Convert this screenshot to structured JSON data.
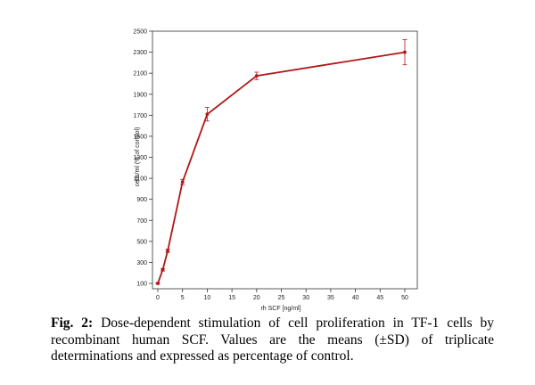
{
  "chart_data": {
    "type": "line",
    "x": [
      0,
      1,
      2,
      5,
      10,
      20,
      50
    ],
    "series": [
      {
        "name": "cells/ml (% of control)",
        "values": [
          100,
          230,
          410,
          1065,
          1710,
          2075,
          2300
        ],
        "sd": [
          8,
          12,
          15,
          25,
          65,
          35,
          120
        ],
        "color": "#b01717"
      }
    ],
    "xlabel": "rh SCF [ng/ml]",
    "ylabel": "cells/ml (% of control)",
    "xlim": [
      0,
      50
    ],
    "ylim": [
      100,
      2500
    ],
    "xticks": [
      "0",
      "5",
      "10",
      "15",
      "20",
      "25",
      "30",
      "35",
      "40",
      "45",
      "50"
    ],
    "yticks": [
      "100",
      "300",
      "500",
      "700",
      "900",
      "1100",
      "1300",
      "1500",
      "1700",
      "1900",
      "2100",
      "2300",
      "2500"
    ],
    "grid": false
  },
  "caption": {
    "label": "Fig. 2:",
    "text": " Dose-dependent stimulation of cell proliferation in TF-1 cells by recombinant human SCF. Values are the means (±SD) of triplicate determinations and expressed as percentage of control."
  }
}
